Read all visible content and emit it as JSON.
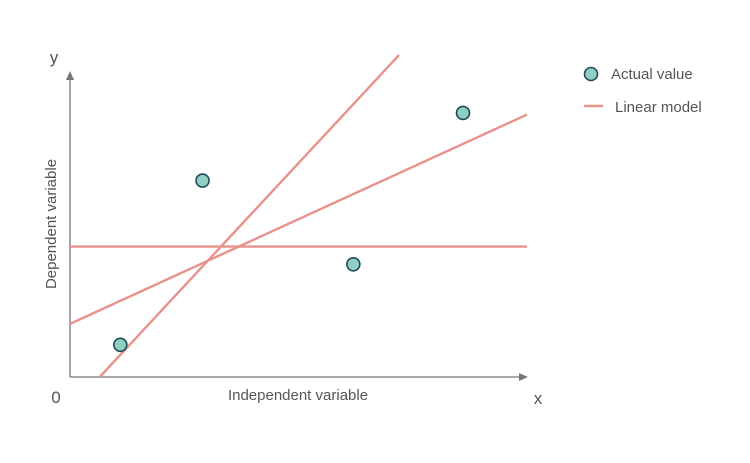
{
  "chart_data": {
    "type": "scatter",
    "title": "",
    "xlabel": "Independent variable",
    "ylabel": "Dependent variable",
    "x_axis_end_label": "x",
    "y_axis_end_label": "y",
    "origin_label": "0",
    "xlim": [
      0,
      10
    ],
    "ylim": [
      0,
      10
    ],
    "grid": false,
    "legend_position": "top-right",
    "colors": {
      "point_fill": "#8fcfc4",
      "point_stroke": "#1f4a5a",
      "line": "#e8928c",
      "axis": "#777777"
    },
    "series": [
      {
        "name": "Actual value",
        "type": "scatter",
        "points": [
          {
            "x": 1.1,
            "y": 1.0
          },
          {
            "x": 2.9,
            "y": 6.1
          },
          {
            "x": 6.2,
            "y": 3.5
          },
          {
            "x": 8.6,
            "y": 8.2
          }
        ]
      }
    ],
    "lines": [
      {
        "name": "Linear model",
        "points": [
          {
            "x": 0,
            "y": 4.05
          },
          {
            "x": 10,
            "y": 4.05
          }
        ]
      },
      {
        "name": "Linear model",
        "points": [
          {
            "x": 0,
            "y": 1.65
          },
          {
            "x": 10,
            "y": 8.15
          }
        ]
      },
      {
        "name": "Linear model",
        "points": [
          {
            "x": 0.65,
            "y": 0
          },
          {
            "x": 7.2,
            "y": 10.0
          }
        ]
      }
    ],
    "legend": [
      {
        "label": "Actual value",
        "symbol": "circle"
      },
      {
        "label": "Linear model",
        "symbol": "line"
      }
    ]
  }
}
